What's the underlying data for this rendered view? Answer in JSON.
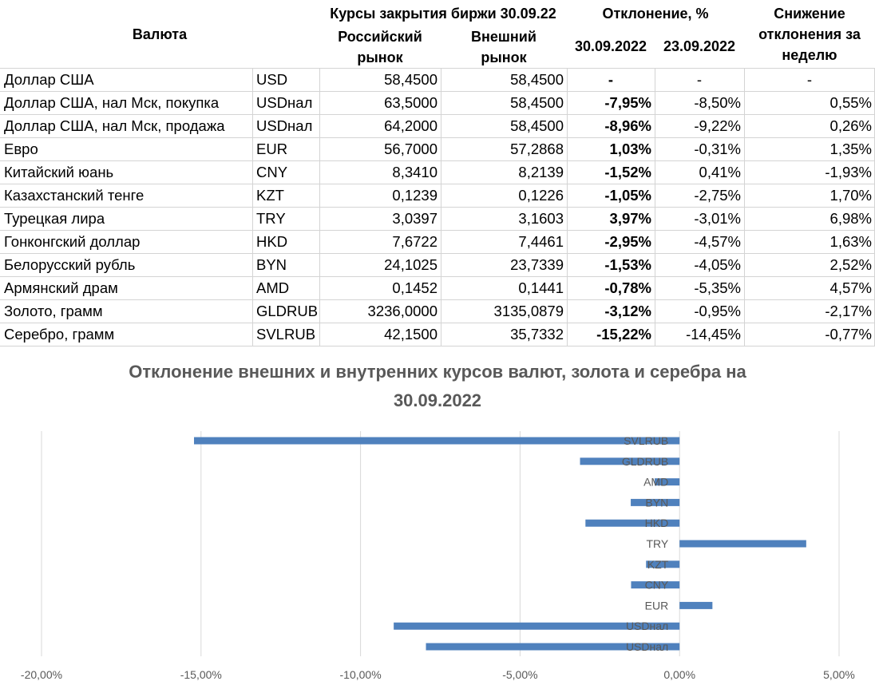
{
  "table": {
    "headers": {
      "currency": "Валюта",
      "rates_group": "Курсы закрытия биржи 30.09.22",
      "russian_market": "Российский рынок",
      "russian_market_l1": "Российский",
      "russian_market_l2": "рынок",
      "external_market": "Внешний рынок",
      "external_market_l1": "Внешний",
      "external_market_l2": "рынок",
      "deviation_group": "Отклонение, %",
      "date1": "30.09.2022",
      "date2": "23.09.2022",
      "reduction": "Снижение отклонения за неделю",
      "reduction_l1": "Снижение",
      "reduction_l2": "отклонения за",
      "reduction_l3": "неделю"
    },
    "rows": [
      {
        "name": "Доллар США",
        "code": "USD",
        "ru": "58,4500",
        "ext": "58,4500",
        "dev1": "-",
        "dev2": "-",
        "change": "-"
      },
      {
        "name": "Доллар США, нал Мск, покупка",
        "code": "USDнал",
        "ru": "63,5000",
        "ext": "58,4500",
        "dev1": "-7,95%",
        "dev2": "-8,50%",
        "change": "0,55%"
      },
      {
        "name": "Доллар США, нал Мск, продажа",
        "code": "USDнал",
        "ru": "64,2000",
        "ext": "58,4500",
        "dev1": "-8,96%",
        "dev2": "-9,22%",
        "change": "0,26%"
      },
      {
        "name": "Евро",
        "code": "EUR",
        "ru": "56,7000",
        "ext": "57,2868",
        "dev1": "1,03%",
        "dev2": "-0,31%",
        "change": "1,35%"
      },
      {
        "name": "Китайский юань",
        "code": "CNY",
        "ru": "8,3410",
        "ext": "8,2139",
        "dev1": "-1,52%",
        "dev2": "0,41%",
        "change": "-1,93%"
      },
      {
        "name": "Казахстанский тенге",
        "code": "KZT",
        "ru": "0,1239",
        "ext": "0,1226",
        "dev1": "-1,05%",
        "dev2": "-2,75%",
        "change": "1,70%"
      },
      {
        "name": "Турецкая лира",
        "code": "TRY",
        "ru": "3,0397",
        "ext": "3,1603",
        "dev1": "3,97%",
        "dev2": "-3,01%",
        "change": "6,98%"
      },
      {
        "name": "Гонконгский доллар",
        "code": "HKD",
        "ru": "7,6722",
        "ext": "7,4461",
        "dev1": "-2,95%",
        "dev2": "-4,57%",
        "change": "1,63%"
      },
      {
        "name": "Белорусский рубль",
        "code": "BYN",
        "ru": "24,1025",
        "ext": "23,7339",
        "dev1": "-1,53%",
        "dev2": "-4,05%",
        "change": "2,52%"
      },
      {
        "name": "Армянский драм",
        "code": "AMD",
        "ru": "0,1452",
        "ext": "0,1441",
        "dev1": "-0,78%",
        "dev2": "-5,35%",
        "change": "4,57%"
      },
      {
        "name": "Золото, грамм",
        "code": "GLDRUB",
        "ru": "3236,0000",
        "ext": "3135,0879",
        "dev1": "-3,12%",
        "dev2": "-0,95%",
        "change": "-2,17%"
      },
      {
        "name": "Серебро, грамм",
        "code": "SVLRUB",
        "ru": "42,1500",
        "ext": "35,7332",
        "dev1": "-15,22%",
        "dev2": "-14,45%",
        "change": "-0,77%"
      }
    ]
  },
  "chart_data": {
    "type": "bar",
    "orientation": "horizontal",
    "title": "Отклонение внешних и внутренних курсов валют, золота и серебра на 30.09.2022",
    "title_line1": "Отклонение внешних и внутренних курсов валют, золота и серебра на",
    "title_line2": "30.09.2022",
    "categories": [
      "SVLRUB",
      "GLDRUB",
      "AMD",
      "BYN",
      "HKD",
      "TRY",
      "KZT",
      "CNY",
      "EUR",
      "USDнал",
      "USDнал"
    ],
    "values": [
      -15.22,
      -3.12,
      -0.78,
      -1.53,
      -2.95,
      3.97,
      -1.05,
      -1.52,
      1.03,
      -8.96,
      -7.95
    ],
    "xlim": [
      -20,
      5
    ],
    "x_ticks": [
      -20,
      -15,
      -10,
      -5,
      0,
      5
    ],
    "x_tick_labels": [
      "-20,00%",
      "-15,00%",
      "-10,00%",
      "-5,00%",
      "0,00%",
      "5,00%"
    ],
    "grid": true,
    "bar_color": "#4f81bd"
  }
}
